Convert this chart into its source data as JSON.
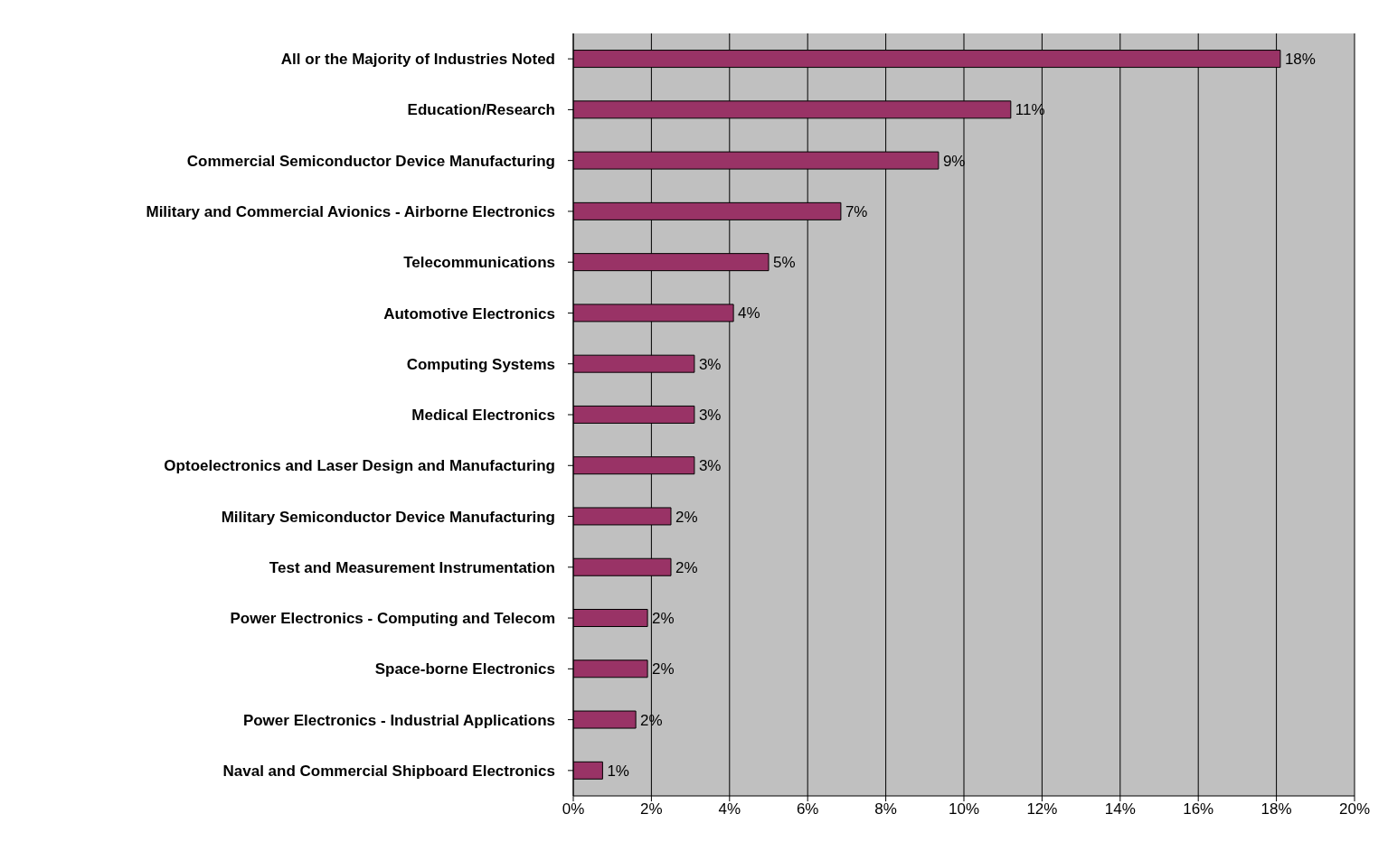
{
  "chart_data": {
    "type": "bar",
    "orientation": "horizontal",
    "categories": [
      "All or the Majority of Industries Noted",
      "Education/Research",
      "Commercial Semiconductor Device Manufacturing",
      "Military and Commercial Avionics - Airborne Electronics",
      "Telecommunications",
      "Automotive Electronics",
      "Computing Systems",
      "Medical Electronics",
      "Optoelectronics and Laser Design and Manufacturing",
      "Military Semiconductor Device Manufacturing",
      "Test and Measurement Instrumentation",
      "Power Electronics - Computing and Telecom",
      "Space-borne Electronics",
      "Power Electronics - Industrial Applications",
      "Naval and Commercial Shipboard Electronics"
    ],
    "values": [
      18.1,
      11.2,
      9.35,
      6.85,
      5.0,
      4.1,
      3.1,
      3.1,
      3.1,
      2.5,
      2.5,
      1.9,
      1.9,
      1.6,
      0.75
    ],
    "value_labels": [
      "18%",
      "11%",
      "9%",
      "7%",
      "5%",
      "4%",
      "3%",
      "3%",
      "3%",
      "2%",
      "2%",
      "2%",
      "2%",
      "2%",
      "1%"
    ],
    "color": "#993366",
    "xlim": [
      0,
      20
    ],
    "xticks": [
      {
        "value": 0,
        "label": "0%"
      },
      {
        "value": 2,
        "label": "2%"
      },
      {
        "value": 4,
        "label": "4%"
      },
      {
        "value": 6,
        "label": "6%"
      },
      {
        "value": 8,
        "label": "8%"
      },
      {
        "value": 10,
        "label": "10%"
      },
      {
        "value": 12,
        "label": "12%"
      },
      {
        "value": 14,
        "label": "14%"
      },
      {
        "value": 16,
        "label": "16%"
      },
      {
        "value": 18,
        "label": "18%"
      },
      {
        "value": 20,
        "label": "20%"
      }
    ],
    "grid": "x"
  }
}
